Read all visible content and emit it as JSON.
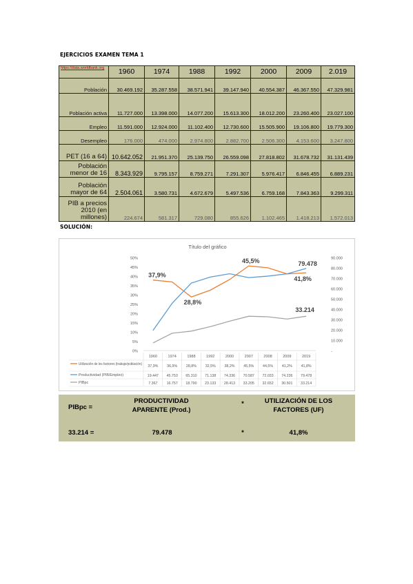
{
  "heading1": "EJERCICIOS EXAMEN TEMA 1",
  "heading2": "SOLUCIÓN:",
  "table": {
    "source_link": "https://data.worldbank.org",
    "years": [
      "1960",
      "1974",
      "1988",
      "1992",
      "2000",
      "2009",
      "2.019"
    ],
    "rows": [
      {
        "label": "Población",
        "values": [
          "30.469.192",
          "35.287.558",
          "38.571.941",
          "39.147.940",
          "40.554.387",
          "46.367.550",
          "47.329.981"
        ]
      },
      {
        "label": "Población activa",
        "values": [
          "11.727.000",
          "13.398.000",
          "14.077.200",
          "15.613.300",
          "18.012.200",
          "23.260.400",
          "23.027.100"
        ]
      },
      {
        "label": "Empleo",
        "values": [
          "11.591.000",
          "12.924.000",
          "11.102.400",
          "12.730.600",
          "15.505.900",
          "19.106.800",
          "19.779.300"
        ]
      },
      {
        "label": "Desempleo",
        "values": [
          "176.000",
          "474.000",
          "2.974.800",
          "2.882.700",
          "2.506.300",
          "4.153.600",
          "3.247.800"
        ]
      },
      {
        "label": "PET (16 a 64)",
        "values": [
          "10.642.052",
          "21.951.370",
          "25.139.750",
          "26.559.098",
          "27.818.802",
          "31.678.732",
          "31.131.439"
        ]
      },
      {
        "label": "Población menor de 16",
        "values": [
          "8.343.929",
          "9.795.157",
          "8.759.271",
          "7.291.307",
          "5.976.417",
          "6.846.455",
          "6.889.231"
        ]
      },
      {
        "label": "Población mayor de 64",
        "values": [
          "2.504.061",
          "3.580.731",
          "4.672.679",
          "5.497.536",
          "6.759.168",
          "7.843.363",
          "9.299.311"
        ]
      },
      {
        "label": "PIB a precios 2010 (en millones)",
        "values": [
          "224.674",
          "581.317",
          "729.080",
          "855.626",
          "1.102.465",
          "1.418.213",
          "1.572.013"
        ]
      }
    ]
  },
  "chart_data": {
    "type": "line",
    "title": "Título del gráfico",
    "ylabel_left": "",
    "left_ticks": [
      "50%",
      "45%",
      "40%",
      "35%",
      "30%",
      "25%",
      "20%",
      "15%",
      "10%",
      "5%",
      "0%"
    ],
    "right_ticks": [
      "90.000",
      "80.000",
      "70.000",
      "60.000",
      "50.000",
      "40.000",
      "30.000",
      "20.000",
      "10.000",
      "-"
    ],
    "categories": [
      "1960",
      "1974",
      "1988",
      "1992",
      "2000",
      "2007",
      "2008",
      "2009",
      "2019"
    ],
    "series": [
      {
        "name": "Utilización de los factores (trabajo/población)",
        "color": "#ed7d31",
        "axis": "left",
        "values": [
          37.9,
          36.9,
          28.8,
          32.5,
          38.2,
          45.5,
          44.5,
          41.2,
          41.8
        ],
        "labels": [
          "37,9%",
          "36,9%",
          "28,8%",
          "32,5%",
          "38,2%",
          "45,5%",
          "44,5%",
          "41,2%",
          "41,8%"
        ]
      },
      {
        "name": "Productividad (PIB/Empleo)",
        "color": "#5b9bd5",
        "axis": "right",
        "values": [
          19447,
          45753,
          65310,
          71138,
          74336,
          70587,
          72033,
          74236,
          79478
        ],
        "labels": [
          "19.447",
          "45.753",
          "65.310",
          "71.138",
          "74.336",
          "70.587",
          "72.033",
          "74.236",
          "79.478"
        ]
      },
      {
        "name": "PIBpc",
        "color": "#a5a5a5",
        "axis": "right",
        "values": [
          7367,
          16757,
          18790,
          23133,
          28413,
          33205,
          32652,
          30501,
          33214
        ],
        "labels": [
          "7.367",
          "16.757",
          "18.790",
          "23.133",
          "28.413",
          "33.205",
          "32.652",
          "30.501",
          "33.214"
        ]
      }
    ],
    "annotations": {
      "orange_first": "37,9%",
      "orange_min": "28,8%",
      "orange_max": "45,5%",
      "orange_last": "41,8%",
      "blue_last": "79.478",
      "gray_last": "33.214"
    }
  },
  "formula": {
    "lhs": "PIBpc  =",
    "term1": "PRODUCTIVIDAD APARENTE (Prod.)",
    "op": "*",
    "term2": "UTILIZACIÓN DE LOS FACTORES (UF)",
    "lhs_value": "33.214  =",
    "value1": "79.478",
    "op2": "*",
    "value2": "41,8%"
  }
}
